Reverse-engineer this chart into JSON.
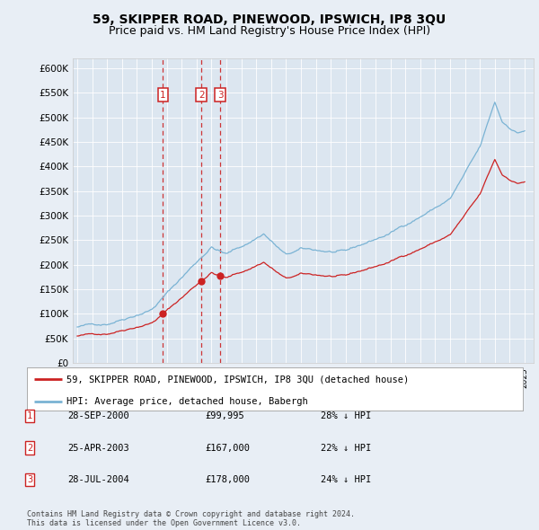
{
  "title": "59, SKIPPER ROAD, PINEWOOD, IPSWICH, IP8 3QU",
  "subtitle": "Price paid vs. HM Land Registry's House Price Index (HPI)",
  "ylim": [
    0,
    620000
  ],
  "yticks": [
    0,
    50000,
    100000,
    150000,
    200000,
    250000,
    300000,
    350000,
    400000,
    450000,
    500000,
    550000,
    600000
  ],
  "ytick_labels": [
    "£0",
    "£50K",
    "£100K",
    "£150K",
    "£200K",
    "£250K",
    "£300K",
    "£350K",
    "£400K",
    "£450K",
    "£500K",
    "£550K",
    "£600K"
  ],
  "hpi_color": "#7ab3d4",
  "price_color": "#cc2222",
  "background_color": "#e8eef5",
  "plot_bg_color": "#dce6f0",
  "grid_color": "#ffffff",
  "sale_year_nums": [
    2000.75,
    2003.33,
    2004.58
  ],
  "sale_prices": [
    99995,
    167000,
    178000
  ],
  "sale_labels": [
    "1",
    "2",
    "3"
  ],
  "legend_entries": [
    "59, SKIPPER ROAD, PINEWOOD, IPSWICH, IP8 3QU (detached house)",
    "HPI: Average price, detached house, Babergh"
  ],
  "table_data": [
    [
      "1",
      "28-SEP-2000",
      "£99,995",
      "28% ↓ HPI"
    ],
    [
      "2",
      "25-APR-2003",
      "£167,000",
      "22% ↓ HPI"
    ],
    [
      "3",
      "28-JUL-2004",
      "£178,000",
      "24% ↓ HPI"
    ]
  ],
  "footnote": "Contains HM Land Registry data © Crown copyright and database right 2024.\nThis data is licensed under the Open Government Licence v3.0.",
  "title_fontsize": 10,
  "subtitle_fontsize": 9
}
